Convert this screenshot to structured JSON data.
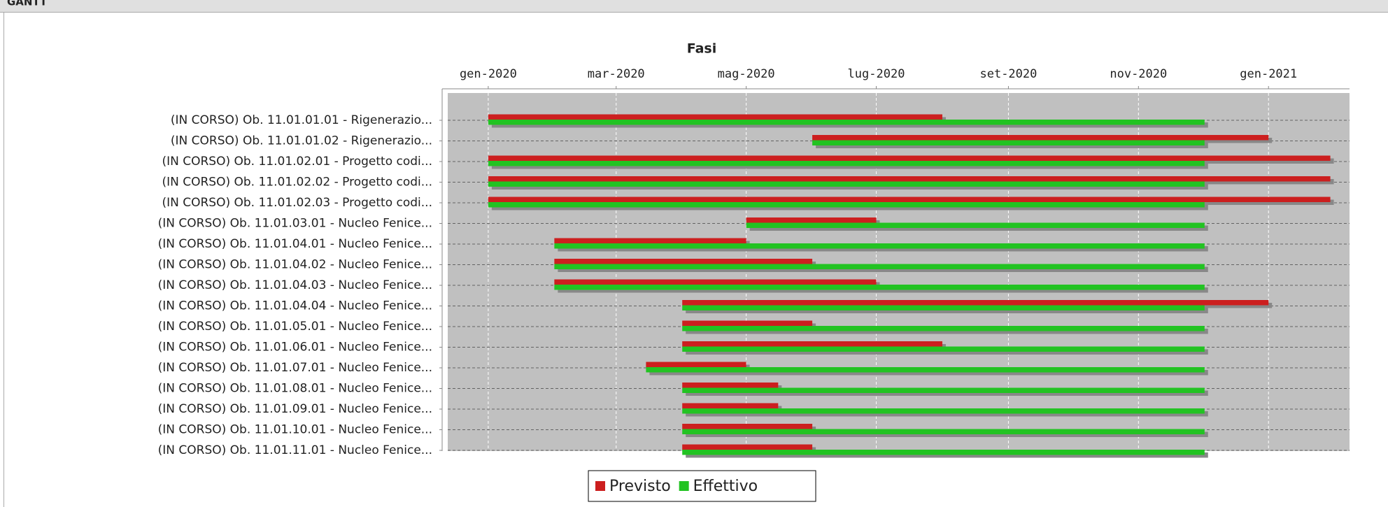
{
  "header": {
    "title": "GANTT"
  },
  "chart_data": {
    "type": "gantt",
    "title": "Fasi",
    "categories": [
      "(IN CORSO) Ob. 11.01.01.01 - Rigenerazio...",
      "(IN CORSO) Ob. 11.01.01.02 - Rigenerazio...",
      "(IN CORSO) Ob. 11.01.02.01 - Progetto codi...",
      "(IN CORSO) Ob. 11.01.02.02 - Progetto codi...",
      "(IN CORSO) Ob. 11.01.02.03 - Progetto codi...",
      "(IN CORSO) Ob. 11.01.03.01 - Nucleo Fenice...",
      "(IN CORSO) Ob. 11.01.04.01 - Nucleo Fenice...",
      "(IN CORSO) Ob. 11.01.04.02 - Nucleo Fenice...",
      "(IN CORSO) Ob. 11.01.04.03 - Nucleo Fenice...",
      "(IN CORSO) Ob. 11.01.04.04 - Nucleo Fenice...",
      "(IN CORSO) Ob. 11.01.05.01 - Nucleo Fenice...",
      "(IN CORSO) Ob. 11.01.06.01 - Nucleo Fenice...",
      "(IN CORSO) Ob. 11.01.07.01 - Nucleo Fenice...",
      "(IN CORSO) Ob. 11.01.08.01 - Nucleo Fenice...",
      "(IN CORSO) Ob. 11.01.09.01 - Nucleo Fenice...",
      "(IN CORSO) Ob. 11.01.10.01 - Nucleo Fenice...",
      "(IN CORSO) Ob. 11.01.11.01 - Nucleo Fenice..."
    ],
    "series": [
      {
        "name": "Previsto",
        "color": "#cc1f1f",
        "start": [
          "2020-01-01",
          "2020-06-01",
          "2020-01-01",
          "2020-01-01",
          "2020-01-01",
          "2020-05-01",
          "2020-02-01",
          "2020-02-01",
          "2020-02-01",
          "2020-04-01",
          "2020-04-01",
          "2020-04-01",
          "2020-03-15",
          "2020-04-01",
          "2020-04-01",
          "2020-04-01",
          "2020-04-01"
        ],
        "end": [
          "2020-08-01",
          "2021-01-01",
          "2021-01-30",
          "2021-01-30",
          "2021-01-30",
          "2020-07-01",
          "2020-05-01",
          "2020-06-01",
          "2020-07-01",
          "2021-01-01",
          "2020-06-01",
          "2020-08-01",
          "2020-05-01",
          "2020-05-16",
          "2020-05-16",
          "2020-06-01",
          "2020-06-01"
        ]
      },
      {
        "name": "Effettivo",
        "color": "#22c322",
        "start": [
          "2020-01-01",
          "2020-06-01",
          "2020-01-01",
          "2020-01-01",
          "2020-01-01",
          "2020-05-01",
          "2020-02-01",
          "2020-02-01",
          "2020-02-01",
          "2020-04-01",
          "2020-04-01",
          "2020-04-01",
          "2020-03-15",
          "2020-04-01",
          "2020-04-01",
          "2020-04-01",
          "2020-04-01"
        ],
        "end": [
          "2020-12-02",
          "2020-12-02",
          "2020-12-02",
          "2020-12-02",
          "2020-12-02",
          "2020-12-02",
          "2020-12-02",
          "2020-12-02",
          "2020-12-02",
          "2020-12-02",
          "2020-12-02",
          "2020-12-02",
          "2020-12-02",
          "2020-12-02",
          "2020-12-02",
          "2020-12-02",
          "2020-12-02"
        ]
      }
    ],
    "xlim": [
      "2019-12-13",
      "2021-02-08"
    ],
    "xticks": [
      {
        "value": "2020-01-01",
        "label": "gen-2020"
      },
      {
        "value": "2020-03-01",
        "label": "mar-2020"
      },
      {
        "value": "2020-05-01",
        "label": "mag-2020"
      },
      {
        "value": "2020-07-01",
        "label": "lug-2020"
      },
      {
        "value": "2020-09-01",
        "label": "set-2020"
      },
      {
        "value": "2020-11-01",
        "label": "nov-2020"
      },
      {
        "value": "2021-01-01",
        "label": "gen-2021"
      }
    ],
    "grid": true,
    "legend": "bottom"
  }
}
